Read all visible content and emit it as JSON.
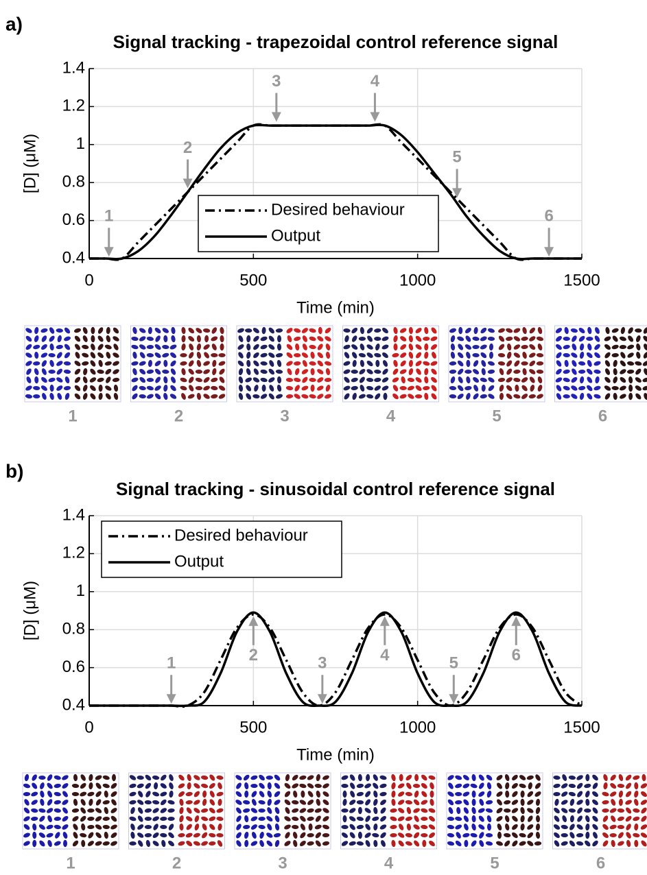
{
  "chart_data": [
    {
      "type": "line",
      "panel_label": "a)",
      "title": "Signal tracking - trapezoidal control reference signal",
      "xlabel": "Time (min)",
      "ylabel": "[D] (μM)",
      "xlim": [
        0,
        1500
      ],
      "ylim": [
        0.4,
        1.4
      ],
      "xticks": [
        0,
        500,
        1000,
        1500
      ],
      "yticks": [
        0.4,
        0.6,
        0.8,
        1,
        1.2,
        1.4
      ],
      "grid": true,
      "legend": "lower center",
      "x": [
        0,
        50,
        100,
        150,
        200,
        250,
        300,
        350,
        400,
        450,
        500,
        550,
        600,
        650,
        700,
        750,
        800,
        850,
        900,
        950,
        1000,
        1050,
        1100,
        1150,
        1200,
        1250,
        1300,
        1350,
        1400,
        1450,
        1500
      ],
      "series": [
        {
          "name": "Desired behaviour",
          "color": "#000000",
          "dash": "dashdot",
          "values": [
            0.4,
            0.4,
            0.4,
            0.4875,
            0.575,
            0.6625,
            0.75,
            0.8375,
            0.925,
            1.0125,
            1.1,
            1.1,
            1.1,
            1.1,
            1.1,
            1.1,
            1.1,
            1.1,
            1.1,
            1.0125,
            0.925,
            0.8375,
            0.75,
            0.6625,
            0.575,
            0.4875,
            0.4,
            0.4,
            0.4,
            0.4,
            0.4
          ]
        },
        {
          "name": "Output",
          "color": "#000000",
          "dash": "solid",
          "values": [
            0.4,
            0.4,
            0.4,
            0.44,
            0.52,
            0.63,
            0.75,
            0.87,
            0.98,
            1.06,
            1.1,
            1.1,
            1.1,
            1.1,
            1.1,
            1.1,
            1.1,
            1.1,
            1.1,
            1.05,
            0.96,
            0.85,
            0.74,
            0.62,
            0.52,
            0.44,
            0.4,
            0.4,
            0.4,
            0.4,
            0.4
          ]
        }
      ],
      "annotations": [
        {
          "text": "1",
          "x": 60,
          "y": 0.41,
          "direction": "down"
        },
        {
          "text": "2",
          "x": 300,
          "y": 0.77,
          "direction": "down"
        },
        {
          "text": "3",
          "x": 570,
          "y": 1.12,
          "direction": "down"
        },
        {
          "text": "4",
          "x": 870,
          "y": 1.12,
          "direction": "down"
        },
        {
          "text": "5",
          "x": 1120,
          "y": 0.72,
          "direction": "down"
        },
        {
          "text": "6",
          "x": 1400,
          "y": 0.41,
          "direction": "down"
        }
      ],
      "snapshots": [
        {
          "label": "1",
          "left_color": "#2222b0",
          "right_color": "#3a1515"
        },
        {
          "label": "2",
          "left_color": "#2424a0",
          "right_color": "#7a1c1c"
        },
        {
          "label": "3",
          "left_color": "#20205e",
          "right_color": "#d02222"
        },
        {
          "label": "4",
          "left_color": "#20205e",
          "right_color": "#cc2020"
        },
        {
          "label": "5",
          "left_color": "#2424a0",
          "right_color": "#7a1c1c"
        },
        {
          "label": "6",
          "left_color": "#2222b8",
          "right_color": "#2c1414"
        }
      ]
    },
    {
      "type": "line",
      "panel_label": "b)",
      "title": "Signal tracking - sinusoidal control reference signal",
      "xlabel": "Time (min)",
      "ylabel": "[D] (μM)",
      "xlim": [
        0,
        1500
      ],
      "ylim": [
        0.4,
        1.4
      ],
      "xticks": [
        0,
        500,
        1000,
        1500
      ],
      "yticks": [
        0.4,
        0.6,
        0.8,
        1,
        1.2,
        1.4
      ],
      "grid": true,
      "legend": "upper left",
      "x": [
        0,
        50,
        100,
        150,
        200,
        250,
        300,
        350,
        400,
        450,
        500,
        550,
        600,
        650,
        700,
        750,
        800,
        850,
        900,
        950,
        1000,
        1050,
        1100,
        1150,
        1200,
        1250,
        1300,
        1350,
        1400,
        1450,
        1500
      ],
      "series": [
        {
          "name": "Desired behaviour",
          "color": "#000000",
          "dash": "dashdot",
          "values": [
            0.4,
            0.4,
            0.4,
            0.4,
            0.4,
            0.4,
            0.4,
            0.47,
            0.64,
            0.81,
            0.88,
            0.81,
            0.64,
            0.47,
            0.4,
            0.47,
            0.64,
            0.81,
            0.88,
            0.81,
            0.64,
            0.47,
            0.4,
            0.47,
            0.64,
            0.81,
            0.88,
            0.81,
            0.64,
            0.47,
            0.4
          ]
        },
        {
          "name": "Output",
          "color": "#000000",
          "dash": "solid",
          "values": [
            0.4,
            0.4,
            0.4,
            0.4,
            0.4,
            0.4,
            0.4,
            0.42,
            0.57,
            0.79,
            0.89,
            0.79,
            0.57,
            0.42,
            0.4,
            0.42,
            0.57,
            0.79,
            0.89,
            0.79,
            0.57,
            0.42,
            0.4,
            0.42,
            0.57,
            0.79,
            0.89,
            0.79,
            0.57,
            0.42,
            0.4
          ]
        }
      ],
      "annotations": [
        {
          "text": "1",
          "x": 250,
          "y": 0.41,
          "direction": "down"
        },
        {
          "text": "2",
          "x": 500,
          "y": 0.87,
          "direction": "up"
        },
        {
          "text": "3",
          "x": 710,
          "y": 0.41,
          "direction": "down"
        },
        {
          "text": "4",
          "x": 900,
          "y": 0.87,
          "direction": "up"
        },
        {
          "text": "5",
          "x": 1110,
          "y": 0.41,
          "direction": "down"
        },
        {
          "text": "6",
          "x": 1300,
          "y": 0.87,
          "direction": "up"
        }
      ],
      "snapshots": [
        {
          "label": "1",
          "left_color": "#1c1caa",
          "right_color": "#3a1515"
        },
        {
          "label": "2",
          "left_color": "#1e1e62",
          "right_color": "#b01e1e"
        },
        {
          "label": "3",
          "left_color": "#1c1caa",
          "right_color": "#481717"
        },
        {
          "label": "4",
          "left_color": "#1e1e62",
          "right_color": "#b81e1e"
        },
        {
          "label": "5",
          "left_color": "#1c1cb0",
          "right_color": "#3a1515"
        },
        {
          "label": "6",
          "left_color": "#1e1e62",
          "right_color": "#b01e1e"
        }
      ]
    }
  ]
}
